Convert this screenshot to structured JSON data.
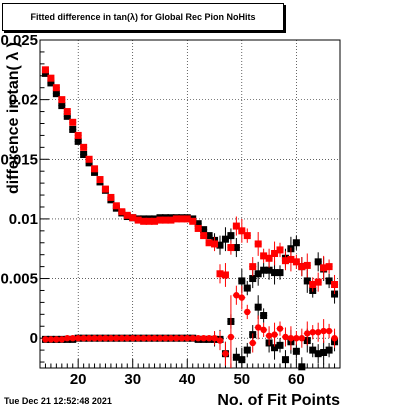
{
  "chart_data": {
    "type": "scatter",
    "title": "Fitted difference in tan(λ) for Global Rec Pion NoHits",
    "xlabel": "No. of Fit Points",
    "ylabel": "difference in tan( λ )",
    "xlim": [
      13,
      68
    ],
    "ylim": [
      -0.0025,
      0.025
    ],
    "xticks": [
      20,
      30,
      40,
      50,
      60
    ],
    "xtick_labels": [
      "20",
      "30",
      "40",
      "50",
      "60"
    ],
    "yticks": [
      0,
      0.005,
      0.01,
      0.015,
      0.02,
      0.025
    ],
    "ytick_labels": [
      "0",
      "0.005",
      "0.01",
      "0.015",
      "0.02",
      "0.025"
    ],
    "grid": true,
    "timestamp": "Tue Dec 21 12:52:48 2021",
    "series": [
      {
        "color": "#000000",
        "marker": "square",
        "x": [
          14,
          15,
          16,
          17,
          18,
          19,
          20,
          21,
          22,
          23,
          24,
          25,
          26,
          27,
          28,
          29,
          30,
          31,
          32,
          33,
          34,
          35,
          36,
          37,
          38,
          39,
          40,
          41,
          42,
          43,
          44,
          45,
          46,
          47,
          48,
          49,
          50,
          51,
          52,
          53,
          54,
          55,
          56,
          57,
          58,
          59,
          60,
          61,
          62,
          63,
          64,
          65,
          66,
          67
        ],
        "y": [
          0.0222,
          0.0214,
          0.0205,
          0.0195,
          0.0186,
          0.0175,
          0.0165,
          0.0154,
          0.0147,
          0.0139,
          0.0131,
          0.0124,
          0.0116,
          0.0109,
          0.0105,
          0.0102,
          0.0101,
          0.01,
          0.01,
          0.01,
          0.01,
          0.0101,
          0.0101,
          0.0101,
          0.0101,
          0.0101,
          0.0101,
          0.01,
          0.0096,
          0.0091,
          0.0086,
          0.0082,
          0.0078,
          0.0083,
          0.0086,
          0.0076,
          0.0048,
          0.0042,
          0.005,
          0.0054,
          0.0057,
          0.0057,
          0.0055,
          0.0055,
          0.0067,
          0.0075,
          0.008,
          0.006,
          0.0048,
          0.004,
          0.0064,
          0.0058,
          0.0048,
          0.0037
        ]
      },
      {
        "color": "#000000",
        "marker": "square",
        "x": [
          14,
          15,
          16,
          17,
          18,
          19,
          20,
          21,
          22,
          23,
          24,
          25,
          26,
          27,
          28,
          29,
          30,
          31,
          32,
          33,
          34,
          35,
          36,
          37,
          38,
          39,
          40,
          41,
          42,
          43,
          44,
          45,
          46,
          47,
          48,
          49,
          50,
          51,
          52,
          53,
          54,
          55,
          56,
          57,
          58,
          59,
          60,
          61,
          62,
          63,
          64,
          65,
          66,
          67
        ],
        "y": [
          -0.0001,
          -0.0001,
          -0.0001,
          -0.0001,
          -0.0001,
          -0.0001,
          0.0,
          0.0,
          0.0,
          0.0,
          0.0,
          0.0,
          0.0,
          0.0,
          0.0,
          0.0,
          0.0,
          0.0,
          0.0,
          0.0,
          0.0,
          0.0,
          0.0,
          0.0,
          0.0,
          0.0,
          0.0,
          0.0,
          -0.0001,
          -0.0001,
          -0.0001,
          -0.0001,
          -0.0001,
          -0.0013,
          0.0014,
          -0.0016,
          -0.0018,
          -0.001,
          0.0003,
          0.0026,
          0.0019,
          -0.0004,
          -0.0008,
          -0.0006,
          -0.0018,
          -0.0003,
          -0.0011,
          -0.0024,
          -0.0002,
          -0.001,
          -0.0013,
          -0.0012,
          -0.001,
          -0.0003
        ]
      },
      {
        "color": "#ff0000",
        "marker": "square",
        "x": [
          14,
          15,
          16,
          17,
          18,
          19,
          20,
          21,
          22,
          23,
          24,
          25,
          26,
          27,
          28,
          29,
          30,
          31,
          32,
          33,
          34,
          35,
          36,
          37,
          38,
          39,
          40,
          41,
          42,
          43,
          44,
          45,
          46,
          47,
          48,
          49,
          50,
          51,
          52,
          53,
          54,
          55,
          56,
          57,
          58,
          59,
          60,
          61,
          62,
          63,
          64,
          65,
          66,
          67
        ],
        "y": [
          0.0225,
          0.0218,
          0.021,
          0.02,
          0.019,
          0.0181,
          0.017,
          0.016,
          0.015,
          0.0142,
          0.0133,
          0.0125,
          0.0118,
          0.0111,
          0.0106,
          0.0103,
          0.0101,
          0.0099,
          0.0098,
          0.0098,
          0.0098,
          0.0099,
          0.0099,
          0.0099,
          0.01,
          0.01,
          0.01,
          0.0098,
          0.0092,
          0.0086,
          0.008,
          0.0079,
          0.0054,
          0.0053,
          0.0076,
          0.0094,
          0.009,
          0.0086,
          0.006,
          0.0079,
          0.0069,
          0.0067,
          0.0071,
          0.0074,
          0.0065,
          0.0066,
          0.0064,
          0.006,
          0.0061,
          0.0045,
          0.0047,
          0.0059,
          0.006,
          0.0045
        ]
      },
      {
        "color": "#ff0000",
        "marker": "circle",
        "x": [
          14,
          15,
          16,
          17,
          18,
          19,
          20,
          21,
          22,
          23,
          24,
          25,
          26,
          27,
          28,
          29,
          30,
          31,
          32,
          33,
          34,
          35,
          36,
          37,
          38,
          39,
          40,
          41,
          42,
          43,
          44,
          45,
          46,
          47,
          48,
          49,
          50,
          51,
          52,
          53,
          54,
          55,
          56,
          57,
          58,
          59,
          60,
          61,
          62,
          63,
          64,
          65,
          66,
          67
        ],
        "y": [
          -0.0001,
          -0.0001,
          -0.0001,
          -0.0001,
          0.0,
          0.0,
          0.0,
          0.0,
          0.0,
          0.0,
          0.0,
          0.0,
          0.0,
          0.0,
          0.0,
          0.0,
          0.0,
          0.0,
          0.0,
          0.0,
          0.0,
          0.0,
          0.0,
          0.0,
          0.0,
          0.0,
          0.0,
          0.0,
          0.0,
          0.0,
          0.0,
          0.0,
          -0.0002,
          -0.0013,
          0.0001,
          0.0036,
          0.0034,
          0.0022,
          -0.0004,
          0.0009,
          0.0007,
          0.0002,
          0.0003,
          0.0008,
          0.0001,
          0.0,
          0.0,
          0.0,
          0.0004,
          0.0005,
          0.0005,
          0.0006,
          0.0006,
          0.0
        ]
      }
    ]
  }
}
